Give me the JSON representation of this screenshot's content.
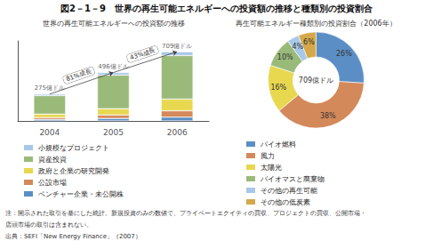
{
  "title": "図2－1－9　世界の再生可能エネルギーへの投資額の推移と種類別の投資割合",
  "annotations": [
    "注：開示された取引を基にした統計。新規投資のみの数値で、プライベートエクイティの買収、プロジェクトの買収、公開市場・",
    "店頭市場の取引は含まれない。",
    "出典：SEFI「New Energy Finance」（2007）"
  ],
  "chart_data": [
    {
      "type": "bar",
      "title": "世界の再生可能エネルギーへの投資額の推移",
      "categories": [
        "2004",
        "2005",
        "2006"
      ],
      "series": [
        {
          "name": "ベンチャー企業・未公開株",
          "color": "#5b8ec4",
          "values": [
            15,
            26,
            39
          ]
        },
        {
          "name": "公設市場",
          "color": "#d4895a",
          "values": [
            20,
            35,
            65
          ]
        },
        {
          "name": "政府と企業の研究開発",
          "color": "#e8d850",
          "values": [
            35,
            65,
            120
          ]
        },
        {
          "name": "資産投資",
          "color": "#9aba7a",
          "values": [
            190,
            344,
            446
          ]
        },
        {
          "name": "小規模なプロジェクト",
          "color": "#a8c8e8",
          "values": [
            15,
            26,
            39
          ]
        }
      ],
      "stacked": true,
      "ylim": [
        0,
        820
      ],
      "tick_labels": "x",
      "grid": false,
      "totals": [
        275,
        496,
        709
      ],
      "total_labels": [
        "275億ドル",
        "496億ドル",
        "709億ドル"
      ],
      "annotations": [
        "81%成長",
        "43%成長"
      ]
    },
    {
      "type": "pie",
      "title": "再生可能エネルギー種類別の投資割合（2006年）",
      "categories": [
        "バイオ燃料",
        "風力",
        "太陽光",
        "バイオマスと廃棄物",
        "その他の再生可能",
        "その他の低炭素"
      ],
      "values": [
        26,
        38,
        16,
        10,
        4,
        6
      ],
      "value_labels": [
        "26%",
        "38%",
        "16%",
        "10%",
        "4%",
        "6%"
      ],
      "colors": [
        "#5b8ec4",
        "#d4895a",
        "#e8d850",
        "#9aba7a",
        "#a8c8e8",
        "#d4a84b"
      ],
      "data_labels": true,
      "annotations": [
        "709億ドル"
      ]
    }
  ]
}
